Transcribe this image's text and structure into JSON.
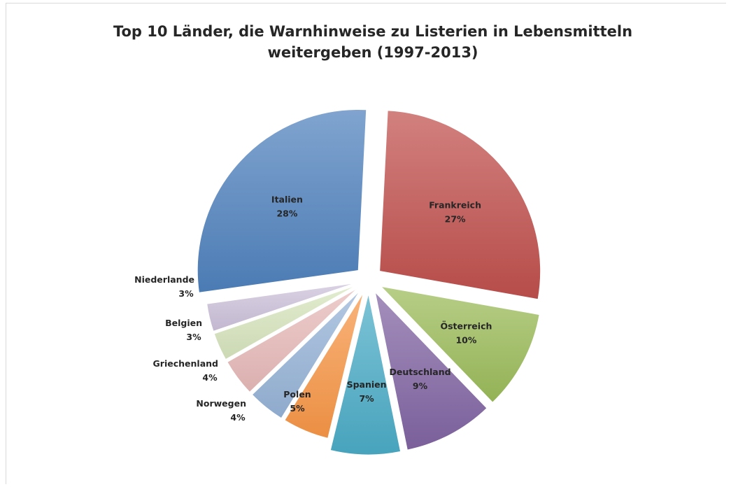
{
  "chart_data": {
    "type": "pie",
    "title_lines": [
      "Top 10 Länder, die Warnhinweise zu Listerien in Lebensmitteln",
      "weitergeben (1997-2013)"
    ],
    "exploded": true,
    "slices": [
      {
        "label": "Frankreich",
        "value": 27,
        "value_label": "27%",
        "color": "#c0504d"
      },
      {
        "label": "Österreich",
        "value": 10,
        "value_label": "10%",
        "color": "#9bbb59"
      },
      {
        "label": "Deutschland",
        "value": 9,
        "value_label": "9%",
        "color": "#8064a2"
      },
      {
        "label": "Spanien",
        "value": 7,
        "value_label": "7%",
        "color": "#4bacc6"
      },
      {
        "label": "Polen",
        "value": 5,
        "value_label": "5%",
        "color": "#f79646"
      },
      {
        "label": "Norwegen",
        "value": 4,
        "value_label": "4%",
        "color": "#95b3d7"
      },
      {
        "label": "Griechenland",
        "value": 4,
        "value_label": "4%",
        "color": "#e6b9b8"
      },
      {
        "label": "Belgien",
        "value": 3,
        "value_label": "3%",
        "color": "#d7e4bd"
      },
      {
        "label": "Niederlande",
        "value": 3,
        "value_label": "3%",
        "color": "#ccc1da"
      },
      {
        "label": "Italien",
        "value": 28,
        "value_label": "28%",
        "color": "#4f81bd"
      }
    ]
  }
}
